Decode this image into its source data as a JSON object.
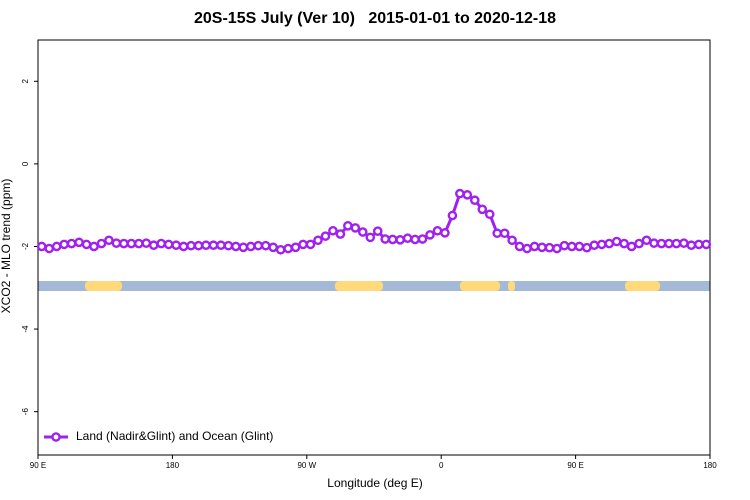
{
  "chart_data": {
    "type": "line",
    "title": "20S-15S July (Ver 10)   2015-01-01 to 2020-12-18",
    "x_label": "Longitude (deg E)",
    "y_label": "XCO2 - MLO trend (ppm)",
    "xlim": [
      90,
      540
    ],
    "ylim": [
      -7.05,
      3.0
    ],
    "xticks": [
      {
        "value": 90,
        "label": "90 E"
      },
      180,
      {
        "value": 270,
        "label": "90 W"
      },
      {
        "value": 360,
        "label": "0"
      },
      {
        "value": 450,
        "label": "90 E"
      },
      {
        "value": 540,
        "label": "180"
      }
    ],
    "yticks": [
      -6,
      -4,
      -2,
      0,
      2
    ],
    "legend": "bottom-left",
    "x": [
      92.5,
      97.5,
      102.5,
      107.5,
      112.5,
      117.5,
      122.5,
      127.5,
      132.5,
      137.5,
      142.5,
      147.5,
      152.5,
      157.5,
      162.5,
      167.5,
      172.5,
      177.5,
      182.5,
      187.5,
      192.5,
      197.5,
      202.5,
      207.5,
      212.5,
      217.5,
      222.5,
      227.5,
      232.5,
      237.5,
      242.5,
      247.5,
      252.5,
      257.5,
      262.5,
      267.5,
      272.5,
      277.5,
      282.5,
      287.5,
      292.5,
      297.5,
      302.5,
      307.5,
      312.5,
      317.5,
      322.5,
      327.5,
      332.5,
      337.5,
      342.5,
      347.5,
      352.5,
      357.5,
      362.5,
      367.5,
      372.5,
      377.5,
      382.5,
      387.5,
      392.5,
      397.5,
      402.5,
      407.5,
      412.5,
      417.5,
      422.5,
      427.5,
      432.5,
      437.5,
      442.5,
      447.5,
      452.5,
      457.5,
      462.5,
      467.5,
      472.5,
      477.5,
      482.5,
      487.5,
      492.5,
      497.5,
      502.5,
      507.5,
      512.5,
      517.5,
      522.5,
      527.5,
      532.5,
      537.5
    ],
    "series": [
      {
        "name": "Land (Nadir&Glint) and Ocean (Glint)",
        "color": "#a020f0",
        "values": [
          -2.0,
          -2.05,
          -2.0,
          -1.95,
          -1.93,
          -1.9,
          -1.95,
          -2.0,
          -1.93,
          -1.85,
          -1.92,
          -1.93,
          -1.93,
          -1.93,
          -1.92,
          -1.97,
          -1.93,
          -1.95,
          -1.97,
          -2.0,
          -1.98,
          -1.98,
          -1.97,
          -1.97,
          -1.97,
          -1.98,
          -2.0,
          -2.02,
          -2.0,
          -1.98,
          -1.98,
          -2.02,
          -2.08,
          -2.05,
          -2.02,
          -1.95,
          -1.95,
          -1.85,
          -1.75,
          -1.62,
          -1.7,
          -1.5,
          -1.55,
          -1.65,
          -1.78,
          -1.63,
          -1.82,
          -1.83,
          -1.84,
          -1.8,
          -1.83,
          -1.82,
          -1.72,
          -1.62,
          -1.67,
          -1.25,
          -0.72,
          -0.75,
          -0.88,
          -1.1,
          -1.22,
          -1.68,
          -1.68,
          -1.85,
          -2.0,
          -2.05,
          -2.0,
          -2.02,
          -2.03,
          -2.05,
          -1.98,
          -2.0,
          -2.0,
          -2.03,
          -1.97,
          -1.95,
          -1.93,
          -1.88,
          -1.93,
          -2.0,
          -1.93,
          -1.85,
          -1.92,
          -1.93,
          -1.93,
          -1.93,
          -1.92,
          -1.97,
          -1.95,
          -1.95
        ]
      }
    ]
  }
}
